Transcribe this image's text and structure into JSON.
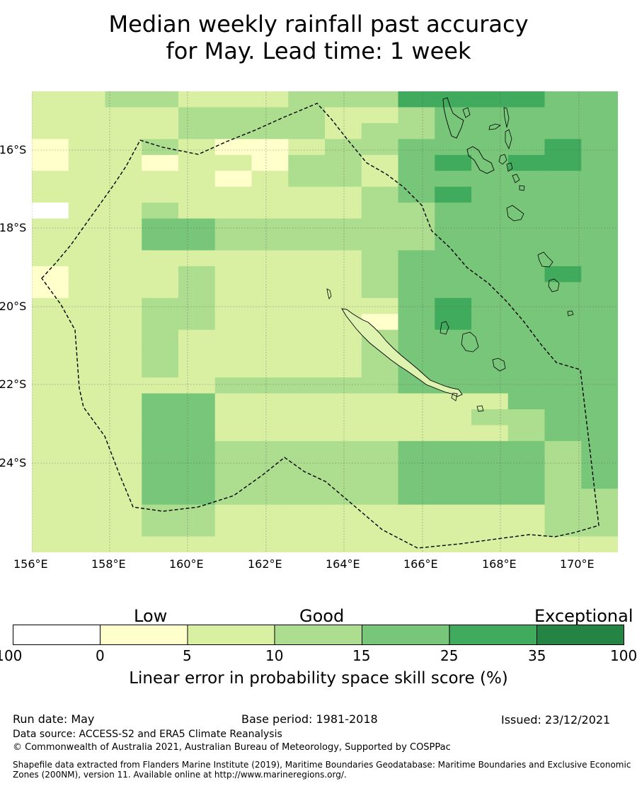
{
  "title_line1": "Median weekly rainfall past accuracy",
  "title_line2": "for May. Lead time: 1 week",
  "map": {
    "lon_labels": [
      "156°E",
      "158°E",
      "160°E",
      "162°E",
      "164°E",
      "166°E",
      "168°E",
      "170°E"
    ],
    "lat_labels": [
      "16°S",
      "18°S",
      "20°S",
      "22°S",
      "24°S"
    ],
    "lat_labels_cut": [
      "-16°S",
      "-18°S",
      "-20°S",
      "-22°S",
      "-24°S"
    ]
  },
  "colorbar": {
    "categories": [
      "Low",
      "Good",
      "Exceptional"
    ],
    "ticks": [
      "-100",
      "0",
      "5",
      "10",
      "15",
      "25",
      "35",
      "100"
    ],
    "colors": [
      "#ffffff",
      "#ffffcc",
      "#d9f0a3",
      "#addd8e",
      "#78c679",
      "#41ab5d",
      "#238443"
    ],
    "caption": "Linear error in probability space skill score (%)"
  },
  "footer": {
    "run_date": "Run date: May",
    "base_period": "Base period: 1981-2018",
    "issued": "Issued: 23/12/2021",
    "data_source": "Data source: ACCESS-S2 and ERA5 Climate Reanalysis",
    "copyright": "© Commonwealth of Australia 2021, Australian Bureau of Meteorology, Supported by COSPPac",
    "shapefile": "Shapefile data extracted from Flanders Marine Institute (2019), Maritime Boundaries Geodatabase: Maritime Boundaries and Exclusive Economic Zones (200NM), version 11. Available online at http://www.marineregions.org/."
  },
  "chart_data": {
    "type": "heatmap",
    "title": "Median weekly rainfall past accuracy for May. Lead time: 1 week",
    "x_range_lon": [
      156,
      171
    ],
    "y_range_lat": [
      -14.5,
      -26.3
    ],
    "cell_size_deg": 0.833,
    "color_scale": "0:white,1:0-5,2:5-10,3:10-15,4:15-25,5:25-35,6:35-100",
    "grid": [
      "2233222333555544",
      "2222333322344444",
      "2222333323344444",
      "1223211233444454",
      "1221221332454554",
      "2222212332444444",
      "2222222223454444",
      "0223222223344444",
      "2224433333344444",
      "2224433333344444",
      "2222222223444444",
      "1222322223444454",
      "1222322223444444",
      "2223322222454444",
      "2223322221454444",
      "2223222223444444",
      "2223222223444444",
      "2223222223444444",
      "2222233333444444",
      "2224422222222444",
      "2224422222223344",
      "2224422222222344",
      "2224433333444434",
      "2224433333444434",
      "2224433333444434",
      "2224433333444433",
      "2223322222222233",
      "2223322222222233",
      "2222222222222222"
    ]
  }
}
